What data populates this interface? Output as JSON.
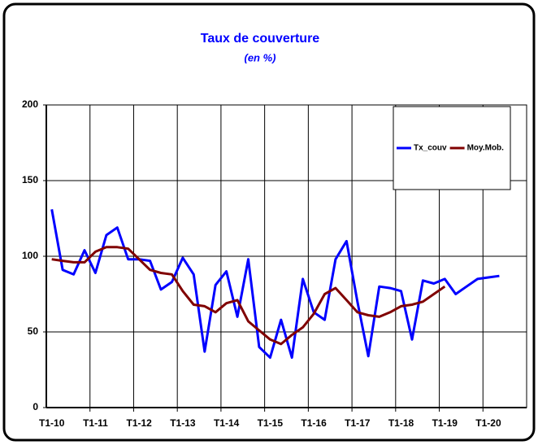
{
  "chart_data": {
    "type": "line",
    "title": "Taux de couverture",
    "subtitle": "(en %)",
    "categories": [
      "T1-10",
      null,
      null,
      null,
      "T1-11",
      null,
      null,
      null,
      "T1-12",
      null,
      null,
      null,
      "T1-13",
      null,
      null,
      null,
      "T1-14",
      null,
      null,
      null,
      "T1-15",
      null,
      null,
      null,
      "T1-16",
      null,
      null,
      null,
      "T1-17",
      null,
      null,
      null,
      "T1-18",
      null,
      null,
      null,
      "T1-19",
      null,
      null,
      null,
      "T1-20",
      null,
      null,
      null
    ],
    "series": [
      {
        "name": "Tx_couv",
        "color": "#0000ff",
        "values": [
          131,
          91,
          88,
          104,
          89,
          114,
          119,
          98,
          98,
          97,
          78,
          83,
          99,
          88,
          37,
          81,
          90,
          60,
          98,
          40,
          33,
          58,
          33,
          85,
          63,
          58,
          98,
          110,
          70,
          34,
          80,
          79,
          77,
          45,
          84,
          82,
          85,
          75,
          80,
          85,
          86,
          87,
          null,
          null
        ]
      },
      {
        "name": "Moy.Mob.",
        "color": "#800000",
        "values": [
          98,
          97,
          96,
          96,
          103,
          106,
          106,
          105,
          98,
          91,
          89,
          88,
          77,
          68,
          67,
          63,
          69,
          71,
          57,
          51,
          45,
          42,
          48,
          53,
          62,
          75,
          79,
          71,
          63,
          61,
          60,
          63,
          67,
          68,
          70,
          75,
          80,
          null,
          null,
          null,
          null,
          null,
          null,
          null
        ]
      }
    ],
    "ylim": [
      0,
      200
    ],
    "yticks": [
      0,
      50,
      100,
      150,
      200
    ],
    "grid": true,
    "legend": "top-right"
  }
}
